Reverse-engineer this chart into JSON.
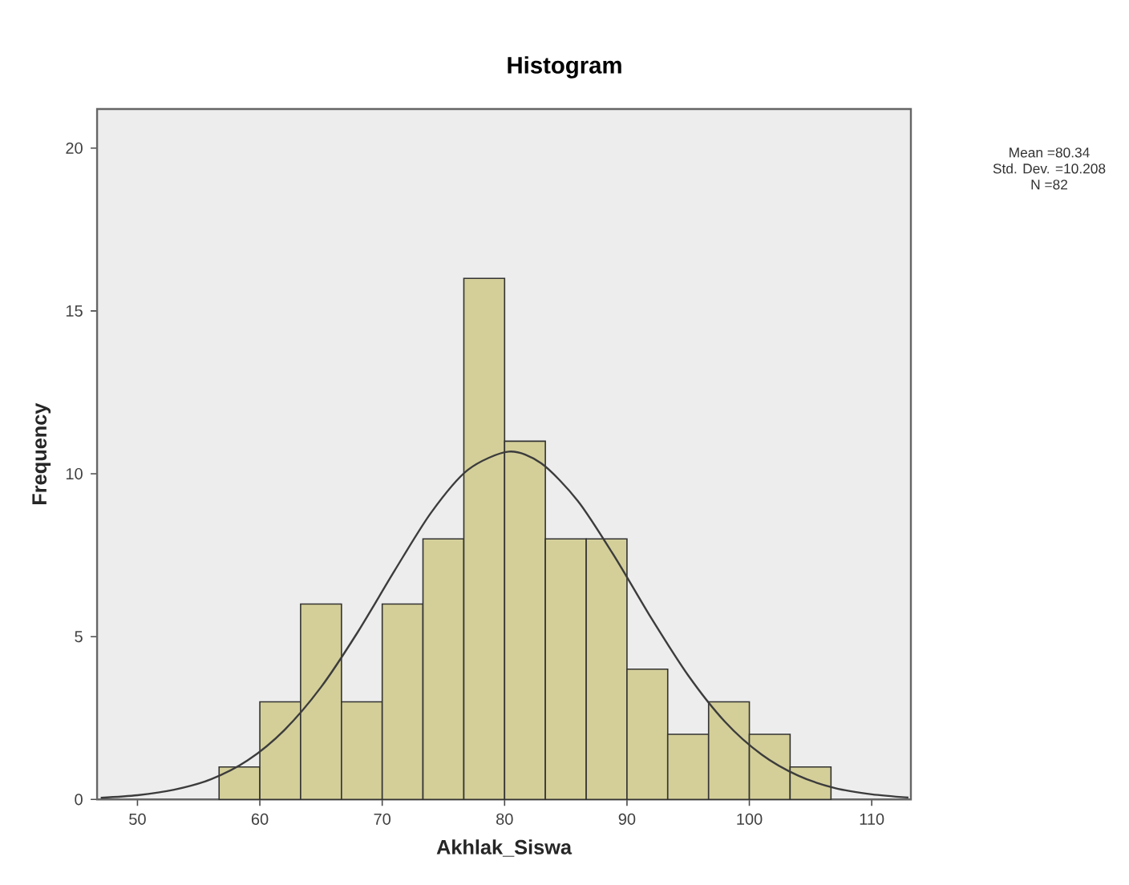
{
  "chart_data": {
    "type": "histogram",
    "title": "Histogram",
    "xlabel": "Akhlak_Siswa",
    "ylabel": "Frequency",
    "bins": [
      56.67,
      60,
      63.33,
      66.67,
      70,
      73.33,
      76.67,
      80,
      83.33,
      86.67,
      90,
      93.33,
      96.67,
      100,
      103.33,
      106.67
    ],
    "values": [
      1,
      3,
      6,
      3,
      6,
      8,
      16,
      11,
      8,
      8,
      4,
      2,
      3,
      2,
      1
    ],
    "color": "#d4cf99",
    "series": [
      {
        "type": "line",
        "color": "#3c3c3c",
        "x": [
          47,
          50,
          53,
          56,
          59,
          62,
          65,
          68,
          71,
          74,
          77,
          80.34,
          83,
          86,
          89,
          92,
          95,
          98,
          101,
          104,
          107,
          110,
          113
        ],
        "values": [
          0.05,
          0.13,
          0.3,
          0.62,
          1.2,
          2.13,
          3.45,
          5.14,
          7.02,
          8.81,
          10.12,
          10.68,
          10.32,
          9.16,
          7.45,
          5.56,
          3.81,
          2.39,
          1.38,
          0.73,
          0.35,
          0.16,
          0.06
        ]
      }
    ],
    "xlim": [
      46.7,
      113.2
    ],
    "ylim": [
      0,
      21.2
    ],
    "xticks": [
      50,
      60,
      70,
      80,
      90,
      100,
      110
    ],
    "yticks": [
      0,
      5,
      10,
      15,
      20
    ],
    "annotations": [
      "Mean =80.34",
      "Std. Dev. =10.208",
      "N =82"
    ]
  }
}
